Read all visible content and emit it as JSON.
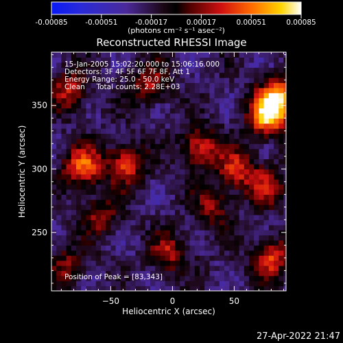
{
  "chart_data": {
    "type": "heatmap",
    "title": "Reconstructed RHESSI Image",
    "xlabel": "Heliocentric X (arcsec)",
    "ylabel": "Heliocentric Y (arcsec)",
    "xlim": [
      -98,
      92
    ],
    "ylim": [
      204,
      392
    ],
    "x_ticks": [
      -50,
      0,
      50
    ],
    "y_ticks": [
      250,
      300,
      350
    ],
    "colorbar": {
      "min": -0.00085,
      "max": 0.00085,
      "tick_values": [
        -0.00085,
        -0.00051,
        -0.00017,
        0.00017,
        0.00051,
        0.00085
      ],
      "tick_labels": [
        "-0.00085",
        "-0.00051",
        "-0.00017",
        "0.00017",
        "0.00051",
        "0.00085"
      ],
      "unit_label": "(photons cm⁻² s⁻¹ asec⁻²)"
    },
    "annotations": [
      "15-Jan-2005 15:02:20.000 to 15:06:16.000",
      "Detectors: 3F 4F 5F 6F 7F 8F, Att 1",
      "Energy Range: 25.0 - 50.0 keV",
      "Clean     Total counts: 2.28E+03"
    ],
    "peak_label": "Position of Peak = [83,343]",
    "peak": [
      83,
      343
    ],
    "bright_regions": [
      {
        "x": 75,
        "y": 340,
        "value": 0.00085
      },
      {
        "x": 85,
        "y": 355,
        "value": 0.0008
      },
      {
        "x": -75,
        "y": 300,
        "value": 0.0007
      },
      {
        "x": -40,
        "y": 302,
        "value": 0.0006
      },
      {
        "x": 20,
        "y": 315,
        "value": 0.0006
      },
      {
        "x": 50,
        "y": 298,
        "value": 0.00055
      },
      {
        "x": 75,
        "y": 285,
        "value": 0.00045
      },
      {
        "x": -85,
        "y": 360,
        "value": 0.0005
      },
      {
        "x": -20,
        "y": 365,
        "value": 0.00045
      },
      {
        "x": 78,
        "y": 228,
        "value": 0.0006
      },
      {
        "x": -5,
        "y": 232,
        "value": 0.00045
      },
      {
        "x": -60,
        "y": 262,
        "value": 0.0004
      },
      {
        "x": 30,
        "y": 268,
        "value": 0.0004
      },
      {
        "x": -88,
        "y": 222,
        "value": 0.00035
      }
    ]
  },
  "footer_timestamp": "27-Apr-2022 21:47"
}
